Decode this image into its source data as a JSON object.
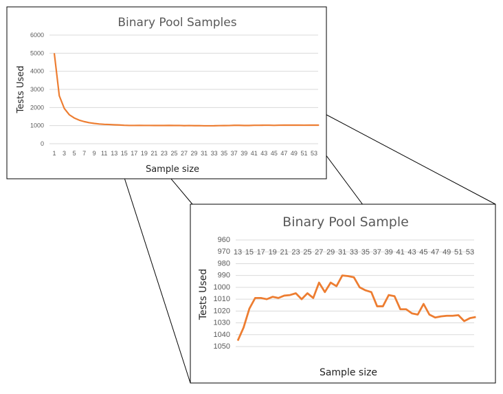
{
  "chart_data": [
    {
      "type": "line",
      "title": "Binary Pool Samples",
      "xlabel": "Sample size",
      "ylabel": "Tests  Used",
      "ylim": [
        0,
        6000
      ],
      "yticks": [
        0,
        1000,
        2000,
        3000,
        4000,
        5000,
        6000
      ],
      "xticks": [
        1,
        3,
        5,
        7,
        9,
        11,
        13,
        15,
        17,
        19,
        21,
        23,
        25,
        27,
        29,
        31,
        33,
        35,
        37,
        39,
        41,
        43,
        45,
        47,
        49,
        51,
        53
      ],
      "grid": true,
      "color": "#ED7D31",
      "x": [
        1,
        2,
        3,
        4,
        5,
        6,
        7,
        8,
        9,
        10,
        11,
        12,
        13,
        14,
        15,
        16,
        17,
        18,
        19,
        20,
        21,
        22,
        23,
        24,
        25,
        26,
        27,
        28,
        29,
        30,
        31,
        32,
        33,
        34,
        35,
        36,
        37,
        38,
        39,
        40,
        41,
        42,
        43,
        44,
        45,
        46,
        47,
        48,
        49,
        50,
        51,
        52,
        53,
        54
      ],
      "y": [
        5000,
        2650,
        1950,
        1600,
        1420,
        1300,
        1220,
        1160,
        1120,
        1090,
        1070,
        1060,
        1045,
        1034,
        1018,
        1009,
        1009,
        1010,
        1008,
        1009,
        1007,
        1006.5,
        1005,
        1010,
        1005,
        1009,
        996,
        1004,
        996,
        999,
        990,
        990.5,
        991.5,
        1000,
        1002.5,
        1004,
        1016,
        1016,
        1006.5,
        1007.5,
        1018.5,
        1018.5,
        1022,
        1023,
        1014,
        1023,
        1025.5,
        1024.5,
        1024,
        1024,
        1023.5,
        1028.5,
        1026,
        1025
      ]
    },
    {
      "type": "line",
      "title": "Binary Pool Sample",
      "xlabel": "Sample size",
      "ylabel": "Tests  Used",
      "ylim": [
        960,
        1050
      ],
      "yticks": [
        960,
        970,
        980,
        990,
        1000,
        1010,
        1020,
        1030,
        1040,
        1050
      ],
      "xticks": [
        13,
        15,
        17,
        19,
        21,
        23,
        25,
        27,
        29,
        31,
        33,
        35,
        37,
        39,
        41,
        43,
        45,
        47,
        49,
        51,
        53
      ],
      "grid": true,
      "color": "#ED7D31",
      "x": [
        13,
        14,
        15,
        16,
        17,
        18,
        19,
        20,
        21,
        22,
        23,
        24,
        25,
        26,
        27,
        28,
        29,
        30,
        31,
        32,
        33,
        34,
        35,
        36,
        37,
        38,
        39,
        40,
        41,
        42,
        43,
        44,
        45,
        46,
        47,
        48,
        49,
        50,
        51,
        52,
        53,
        54
      ],
      "y": [
        1045,
        1034,
        1018,
        1009,
        1009,
        1010,
        1008,
        1009,
        1007,
        1006.5,
        1005,
        1010,
        1005,
        1009,
        996,
        1004,
        996,
        999,
        990,
        990.5,
        991.5,
        1000,
        1002.5,
        1004,
        1016,
        1016,
        1006.5,
        1007.5,
        1018.5,
        1018.5,
        1022,
        1023,
        1014,
        1023,
        1025.5,
        1024.5,
        1024,
        1024,
        1023.5,
        1028.5,
        1026,
        1025
      ]
    }
  ]
}
